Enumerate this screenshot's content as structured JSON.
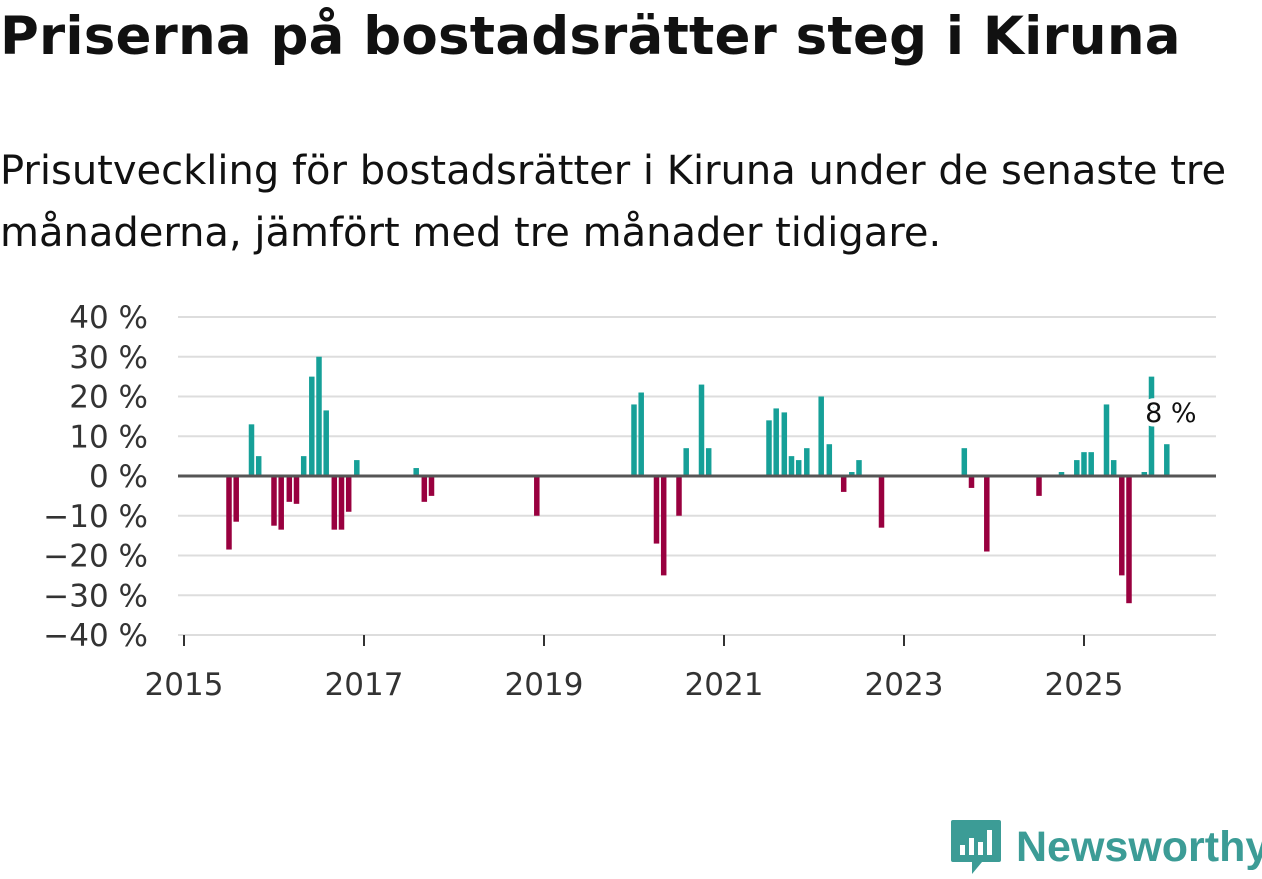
{
  "title": "Priserna på bostadsrätter steg i Kiruna",
  "subtitle": "Prisutveckling för bostadsrätter i Kiruna under de senaste tre månaderna, jämfört med tre månader tidigare.",
  "brand": {
    "name": "Newsworthy",
    "icon": "bar-chart-speech-bubble-icon",
    "color": "#3c9c96"
  },
  "colors": {
    "positive": "#16a098",
    "negative": "#99003f",
    "grid": "#dddddd",
    "zero_line": "#555555"
  },
  "chart_data": {
    "type": "bar",
    "title": "Priserna på bostadsrätter steg i Kiruna",
    "xlabel": "",
    "ylabel": "",
    "ylim": [
      -40,
      40
    ],
    "xlim": [
      2015,
      2026.7
    ],
    "y_ticks": [
      40,
      30,
      20,
      10,
      0,
      -10,
      -20,
      -30,
      -40
    ],
    "y_tick_labels": [
      "40 %",
      "30 %",
      "20 %",
      "10 %",
      "0 %",
      "−10 %",
      "−20 %",
      "−30 %",
      "−40 %"
    ],
    "x_ticks": [
      2015,
      2017,
      2019,
      2021,
      2023,
      2025
    ],
    "x_tick_labels": [
      "2015",
      "2017",
      "2019",
      "2021",
      "2023",
      "2025"
    ],
    "grid": true,
    "annotation": {
      "x": 2025.92,
      "y": 8,
      "label": "8 %"
    },
    "series": [
      {
        "name": "Prisutveckling",
        "x": [
          2015.5,
          2015.58,
          2015.75,
          2015.83,
          2016.0,
          2016.08,
          2016.17,
          2016.25,
          2016.33,
          2016.42,
          2016.5,
          2016.58,
          2016.67,
          2016.75,
          2016.83,
          2016.92,
          2017.58,
          2017.67,
          2017.75,
          2018.92,
          2020.0,
          2020.08,
          2020.25,
          2020.33,
          2020.5,
          2020.58,
          2020.75,
          2020.83,
          2021.5,
          2021.58,
          2021.67,
          2021.75,
          2021.83,
          2021.92,
          2022.08,
          2022.17,
          2022.33,
          2022.42,
          2022.5,
          2022.75,
          2023.67,
          2023.75,
          2023.92,
          2024.5,
          2024.75,
          2024.92,
          2025.0,
          2025.08,
          2025.25,
          2025.33,
          2025.42,
          2025.5,
          2025.67,
          2025.75,
          2025.92
        ],
        "values": [
          -18.5,
          -11.5,
          13,
          5,
          -12.5,
          -13.5,
          -6.5,
          -7,
          5,
          25,
          30,
          16.5,
          -13.5,
          -13.5,
          -9,
          4,
          2,
          -6.5,
          -5,
          -10,
          18,
          21,
          -17,
          -25,
          -10,
          7,
          23,
          7,
          14,
          17,
          16,
          5,
          4,
          7,
          20,
          8,
          -4,
          1,
          4,
          -13,
          7,
          -3,
          -19,
          -5,
          1,
          4,
          6,
          6,
          18,
          4,
          -25,
          -32,
          1,
          25,
          8
        ]
      }
    ]
  }
}
